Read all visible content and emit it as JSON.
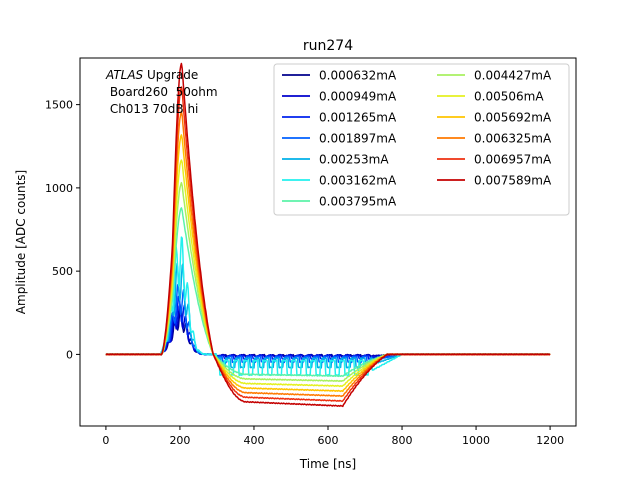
{
  "chart_data": {
    "type": "line",
    "title": "run274",
    "xlabel": "Time [ns]",
    "ylabel": "Amplitude [ADC counts]",
    "xlim": [
      -70,
      1270
    ],
    "ylim": [
      -430,
      1780
    ],
    "x_ticks": [
      0,
      200,
      400,
      600,
      800,
      1000,
      1200
    ],
    "y_ticks": [
      0,
      500,
      1000,
      1500
    ],
    "annotation": {
      "line1_italic": "ATLAS",
      "line1_rest": " Upgrade",
      "line2": " Board260  50ohm",
      "line3": " Ch013 70dB hi"
    },
    "legend_position": "top-right",
    "series": [
      {
        "name": "0.000632mA",
        "color": "#00008b",
        "peak": 280,
        "undershoot": -8,
        "pulsed": true
      },
      {
        "name": "0.000949mA",
        "color": "#0000cd",
        "peak": 300,
        "undershoot": -10,
        "pulsed": true
      },
      {
        "name": "0.001265mA",
        "color": "#0022ee",
        "peak": 360,
        "undershoot": -20,
        "pulsed": true
      },
      {
        "name": "0.001897mA",
        "color": "#0060ff",
        "peak": 440,
        "undershoot": -35,
        "pulsed": true
      },
      {
        "name": "0.00253mA",
        "color": "#00b0e8",
        "peak": 590,
        "undershoot": -60,
        "pulsed": true
      },
      {
        "name": "0.003162mA",
        "color": "#22f0ee",
        "peak": 740,
        "undershoot": -95,
        "pulsed": true
      },
      {
        "name": "0.003795mA",
        "color": "#5cf2a8",
        "peak": 880,
        "undershoot": -130,
        "pulsed": false
      },
      {
        "name": "0.004427mA",
        "color": "#a8f060",
        "peak": 1030,
        "undershoot": -160,
        "pulsed": false
      },
      {
        "name": "0.00506mA",
        "color": "#e4f020",
        "peak": 1170,
        "undershoot": -190,
        "pulsed": false
      },
      {
        "name": "0.005692mA",
        "color": "#ffc400",
        "peak": 1320,
        "undershoot": -220,
        "pulsed": false
      },
      {
        "name": "0.006325mA",
        "color": "#ff7a00",
        "peak": 1460,
        "undershoot": -250,
        "pulsed": false
      },
      {
        "name": "0.006957mA",
        "color": "#ee3010",
        "peak": 1610,
        "undershoot": -280,
        "pulsed": false
      },
      {
        "name": "0.007589mA",
        "color": "#c40000",
        "peak": 1750,
        "undershoot": -310,
        "pulsed": false
      }
    ]
  }
}
